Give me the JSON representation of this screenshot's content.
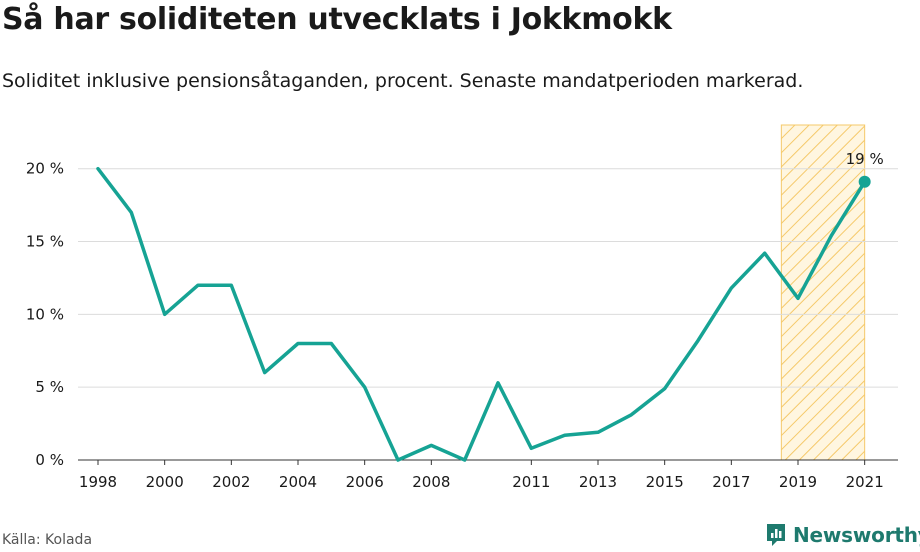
{
  "title": "Så har soliditeten utvecklats i Jokkmokk",
  "subtitle": "Soliditet inklusive pensionsåtaganden, procent. Senaste mandatperioden markerad.",
  "source": "Källa: Kolada",
  "brand": {
    "name": "Newsworthy",
    "icon": "newsworthy-logo-icon",
    "color": "#1e7a6e"
  },
  "chart_data": {
    "type": "line",
    "title": "Så har soliditeten utvecklats i Jokkmokk",
    "subtitle": "Soliditet inklusive pensionsåtaganden, procent. Senaste mandatperioden markerad.",
    "xlabel": "",
    "ylabel": "",
    "x": [
      1998,
      1999,
      2000,
      2001,
      2002,
      2003,
      2004,
      2005,
      2006,
      2007,
      2008,
      2009,
      2010,
      2011,
      2012,
      2013,
      2014,
      2015,
      2016,
      2017,
      2018,
      2019,
      2020,
      2021
    ],
    "series": [
      {
        "values": [
          20,
          17,
          10,
          12,
          12,
          6,
          8,
          8,
          5,
          0,
          1,
          0,
          5.3,
          0.8,
          1.7,
          1.9,
          3.1,
          4.9,
          8.2,
          11.8,
          14.2,
          11.1,
          15.4,
          19.1
        ],
        "color": "#16a394"
      }
    ],
    "xticks": [
      1998,
      2000,
      2002,
      2004,
      2006,
      2008,
      2011,
      2013,
      2015,
      2017,
      2019,
      2021
    ],
    "yticks": [
      0,
      5,
      10,
      15,
      20
    ],
    "ytick_labels": [
      "0 %",
      "5 %",
      "10 %",
      "15 %",
      "20 %"
    ],
    "xlim": [
      1997.4,
      2022.0
    ],
    "ylim": [
      0,
      23
    ],
    "grid": "horizontal",
    "highlight": {
      "x_start": 2018.5,
      "x_end": 2021,
      "color": "#f5c96a",
      "pattern": "diagonal-hatch"
    },
    "annotations": [
      {
        "x": 2021,
        "y": 19.1,
        "text": "19 %"
      }
    ]
  }
}
